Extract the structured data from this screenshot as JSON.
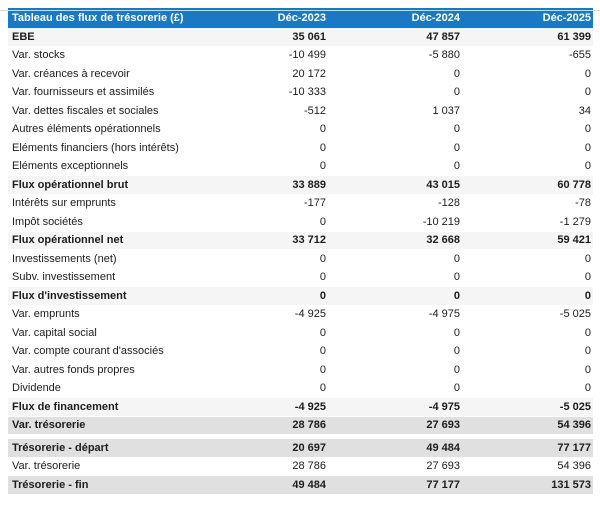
{
  "table": {
    "title": "Tableau des flux de trésorerie (£)",
    "columns": [
      "Déc-2023",
      "Déc-2024",
      "Déc-2025"
    ],
    "rows": [
      {
        "label": "EBE",
        "values": [
          "35 061",
          "47 857",
          "61 399"
        ],
        "style": "subtotal"
      },
      {
        "label": "Var. stocks",
        "values": [
          "-10 499",
          "-5 880",
          "-655"
        ],
        "style": "normal"
      },
      {
        "label": "Var. créances à recevoir",
        "values": [
          "20 172",
          "0",
          "0"
        ],
        "style": "normal"
      },
      {
        "label": "Var. fournisseurs et assimilés",
        "values": [
          "-10 333",
          "0",
          "0"
        ],
        "style": "normal"
      },
      {
        "label": "Var. dettes fiscales et sociales",
        "values": [
          "-512",
          "1 037",
          "34"
        ],
        "style": "normal"
      },
      {
        "label": "Autres éléments opérationnels",
        "values": [
          "0",
          "0",
          "0"
        ],
        "style": "normal"
      },
      {
        "label": "Eléments financiers (hors intérêts)",
        "values": [
          "0",
          "0",
          "0"
        ],
        "style": "normal"
      },
      {
        "label": "Eléments exceptionnels",
        "values": [
          "0",
          "0",
          "0"
        ],
        "style": "normal"
      },
      {
        "label": "Flux opérationnel brut",
        "values": [
          "33 889",
          "43 015",
          "60 778"
        ],
        "style": "subtotal"
      },
      {
        "label": "Intérêts sur emprunts",
        "values": [
          "-177",
          "-128",
          "-78"
        ],
        "style": "normal"
      },
      {
        "label": "Impôt sociétés",
        "values": [
          "0",
          "-10 219",
          "-1 279"
        ],
        "style": "normal"
      },
      {
        "label": "Flux opérationnel net",
        "values": [
          "33 712",
          "32 668",
          "59 421"
        ],
        "style": "subtotal"
      },
      {
        "label": "Investissements (net)",
        "values": [
          "0",
          "0",
          "0"
        ],
        "style": "normal"
      },
      {
        "label": "Subv. investissement",
        "values": [
          "0",
          "0",
          "0"
        ],
        "style": "normal"
      },
      {
        "label": "Flux d'investissement",
        "values": [
          "0",
          "0",
          "0"
        ],
        "style": "subtotal"
      },
      {
        "label": "Var. emprunts",
        "values": [
          "-4 925",
          "-4 975",
          "-5 025"
        ],
        "style": "normal"
      },
      {
        "label": "Var. capital social",
        "values": [
          "0",
          "0",
          "0"
        ],
        "style": "normal"
      },
      {
        "label": "Var. compte courant d'associés",
        "values": [
          "0",
          "0",
          "0"
        ],
        "style": "normal"
      },
      {
        "label": "Var. autres fonds propres",
        "values": [
          "0",
          "0",
          "0"
        ],
        "style": "normal"
      },
      {
        "label": "Dividende",
        "values": [
          "0",
          "0",
          "0"
        ],
        "style": "normal"
      },
      {
        "label": "Flux de financement",
        "values": [
          "-4 925",
          "-4 975",
          "-5 025"
        ],
        "style": "subtotal"
      },
      {
        "label": "Var. trésorerie",
        "values": [
          "28 786",
          "27 693",
          "54 396"
        ],
        "style": "total"
      },
      {
        "label": "",
        "values": [
          "",
          "",
          ""
        ],
        "style": "spacer"
      },
      {
        "label": "Trésorerie - départ",
        "values": [
          "20 697",
          "49 484",
          "77 177"
        ],
        "style": "total"
      },
      {
        "label": "Var. trésorerie",
        "values": [
          "28 786",
          "27 693",
          "54 396"
        ],
        "style": "normal"
      },
      {
        "label": "Trésorerie - fin",
        "values": [
          "49 484",
          "77 177",
          "131 573"
        ],
        "style": "total"
      }
    ],
    "colors": {
      "header_bg": "#1a79c4",
      "header_text": "#ffffff",
      "subtotal_row_bg": "#f5f5f5",
      "total_row_bg": "#e0e0e0",
      "top_rule": "#d8d8d8",
      "text": "#1c1c1c"
    }
  }
}
